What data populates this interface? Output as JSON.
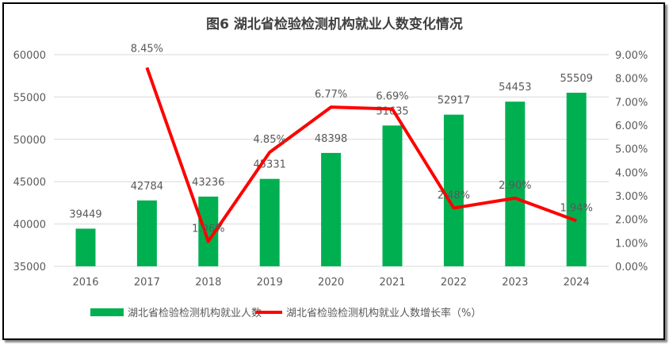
{
  "chart_data": {
    "type": "bar+line",
    "title": "图6  湖北省检验检测机构就业人数变化情况",
    "categories": [
      "2016",
      "2017",
      "2018",
      "2019",
      "2020",
      "2021",
      "2022",
      "2023",
      "2024"
    ],
    "series": [
      {
        "name": "湖北省检验检测机构就业人数",
        "type": "bar",
        "axis": "left",
        "color": "#00b050",
        "values": [
          39449,
          42784,
          43236,
          45331,
          48398,
          51635,
          52917,
          54453,
          55509
        ]
      },
      {
        "name": "湖北省检验检测机构就业人数增长率（%）",
        "type": "line",
        "axis": "right",
        "color": "#ff0000",
        "values": [
          null,
          8.45,
          1.06,
          4.85,
          6.77,
          6.69,
          2.48,
          2.9,
          1.94
        ]
      }
    ],
    "y_left": {
      "range": [
        35000,
        60000
      ],
      "ticks": [
        "35000",
        "40000",
        "45000",
        "50000",
        "55000",
        "60000"
      ]
    },
    "y_right": {
      "range": [
        0,
        9
      ],
      "ticks": [
        "0.00%",
        "1.00%",
        "2.00%",
        "3.00%",
        "4.00%",
        "5.00%",
        "6.00%",
        "7.00%",
        "8.00%",
        "9.00%"
      ]
    },
    "grid": true,
    "legend": "bottom"
  }
}
